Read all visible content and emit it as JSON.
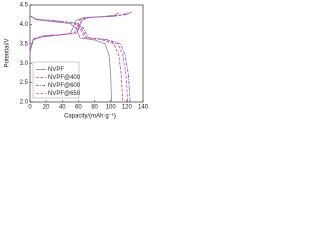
{
  "chart_data": {
    "type": "line",
    "xlabel": "Capacity/(mAh·g⁻¹)",
    "ylabel": "Potential/V",
    "xlim": [
      0,
      140
    ],
    "xticks": [
      0,
      20,
      40,
      60,
      80,
      100,
      120,
      140
    ],
    "ylim": [
      2.0,
      4.5
    ],
    "yticks": [
      {
        "value": 2.0,
        "label": "2.0"
      },
      {
        "value": 2.5,
        "label": "2.5"
      },
      {
        "value": 3.0,
        "label": "3.0"
      },
      {
        "value": 3.5,
        "label": "3.5"
      },
      {
        "value": 4.0,
        "label": "4.0"
      },
      {
        "value": 4.5,
        "label": "4.5"
      }
    ],
    "legend": "lower left",
    "series": [
      {
        "name": "NVPF",
        "color": "#8a8a8a",
        "style": "solid",
        "x": [
          0,
          4,
          15,
          35,
          50,
          57,
          65,
          90,
          105,
          110,
          null,
          0,
          8,
          30,
          50,
          57,
          62,
          80,
          93,
          98,
          100,
          101
        ],
        "values": [
          3.3,
          3.6,
          3.68,
          3.72,
          3.76,
          4.1,
          4.17,
          4.2,
          4.24,
          4.3,
          null,
          4.22,
          4.12,
          4.07,
          4.02,
          3.9,
          3.65,
          3.6,
          3.5,
          3.2,
          2.7,
          2.0
        ]
      },
      {
        "name": "NVPF@400",
        "color": "#e8454a",
        "style": "dashed",
        "x": [
          0,
          4,
          15,
          40,
          55,
          62,
          70,
          100,
          115,
          121,
          null,
          0,
          8,
          35,
          55,
          62,
          68,
          88,
          104,
          110,
          113,
          115
        ],
        "values": [
          3.3,
          3.62,
          3.7,
          3.74,
          3.78,
          4.12,
          4.18,
          4.21,
          4.25,
          4.3,
          null,
          4.22,
          4.13,
          4.08,
          4.03,
          3.9,
          3.66,
          3.61,
          3.5,
          3.2,
          2.7,
          2.0
        ]
      },
      {
        "name": "NVPF@600",
        "color": "#4a5de0",
        "style": "dashdot",
        "x": [
          0,
          4,
          15,
          40,
          58,
          65,
          75,
          105,
          120,
          126,
          null,
          0,
          8,
          38,
          58,
          66,
          72,
          95,
          112,
          118,
          122,
          124
        ],
        "values": [
          3.3,
          3.62,
          3.7,
          3.74,
          3.78,
          4.12,
          4.18,
          4.21,
          4.26,
          4.32,
          null,
          4.22,
          4.13,
          4.08,
          4.03,
          3.9,
          3.66,
          3.61,
          3.5,
          3.2,
          2.7,
          2.0
        ]
      },
      {
        "name": "NVPF@650",
        "color": "#e040e0",
        "style": "dashed",
        "x": [
          0,
          4,
          15,
          40,
          57,
          64,
          72,
          102,
          117,
          124,
          null,
          0,
          8,
          36,
          56,
          64,
          70,
          92,
          109,
          115,
          119,
          121
        ],
        "values": [
          3.3,
          3.62,
          3.7,
          3.74,
          3.78,
          4.12,
          4.18,
          4.21,
          4.25,
          4.3,
          null,
          4.22,
          4.13,
          4.08,
          4.03,
          3.9,
          3.66,
          3.61,
          3.5,
          3.2,
          2.7,
          2.0
        ]
      }
    ]
  }
}
